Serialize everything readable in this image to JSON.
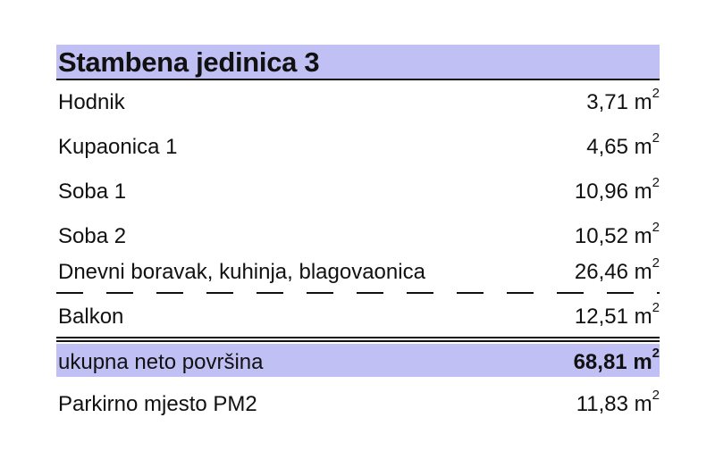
{
  "title": "Stambena jedinica 3",
  "unit": "m",
  "unit_exponent": "2",
  "band_color": "#c0c0f4",
  "rows": [
    {
      "label": "Hodnik",
      "value": "3,71"
    },
    {
      "label": "Kupaonica 1",
      "value": "4,65"
    },
    {
      "label": "Soba 1",
      "value": "10,96"
    },
    {
      "label": "Soba 2",
      "value": "10,52"
    },
    {
      "label": "Dnevni boravak, kuhinja, blagovaonica",
      "value": "26,46"
    },
    {
      "label": "Balkon",
      "value": "12,51"
    }
  ],
  "total": {
    "label": "ukupna neto površina",
    "value": "68,81"
  },
  "parking": {
    "label": "Parkirno mjesto PM2",
    "value": "11,83"
  }
}
